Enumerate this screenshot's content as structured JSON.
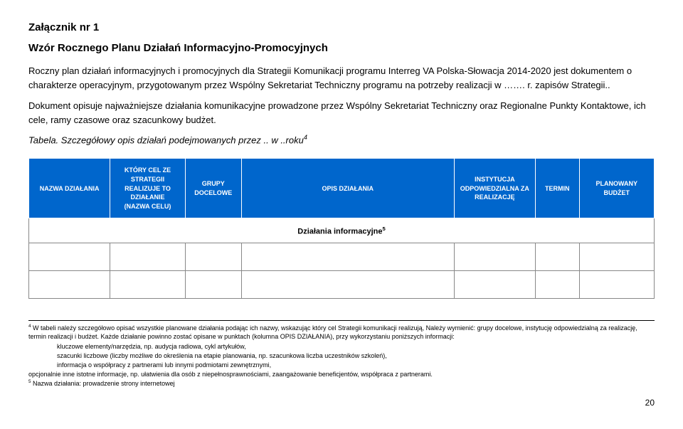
{
  "header": {
    "attachment": "Załącznik nr 1",
    "pattern_title": "Wzór Rocznego Planu Działań Informacyjno-Promocyjnych"
  },
  "paragraphs": {
    "p1": "Roczny plan działań informacyjnych i promocyjnych dla Strategii Komunikacji programu Interreg VA Polska-Słowacja 2014-2020 jest dokumentem o charakterze operacyjnym, przygotowanym przez Wspólny Sekretariat Techniczny programu na potrzeby realizacji w ……. r. zapisów Strategii..",
    "p2": "Dokument opisuje najważniejsze działania komunikacyjne prowadzone przez Wspólny Sekretariat Techniczny oraz Regionalne Punkty Kontaktowe, ich cele, ramy czasowe oraz szacunkowy budżet.",
    "caption_prefix": "Tabela. Szczegółowy opis działań podejmowanych przez .. w ..roku",
    "caption_sup": "4"
  },
  "table": {
    "headers": {
      "nazwa": "NAZWA DZIAŁANIA",
      "cel_l1": "KTÓRY CEL ZE",
      "cel_l2": "STRATEGII",
      "cel_l3": "REALIZUJE TO",
      "cel_l4": "DZIAŁANIE",
      "cel_l5": "(NAZWA CELU)",
      "grupy_l1": "GRUPY",
      "grupy_l2": "DOCELOWE",
      "opis": "OPIS DZIAŁANIA",
      "inst_l1": "INSTYTUCJA",
      "inst_l2": "ODPOWIEDZIALNA ZA",
      "inst_l3": "REALIZACJĘ",
      "termin": "TERMIN",
      "budzet": "PLANOWANY BUDŻET"
    },
    "section_label": "Działania informacyjne",
    "section_sup": "5"
  },
  "footnotes": {
    "f4_lead": "4",
    "f4_text": " W tabeli należy szczegółowo opisać wszystkie planowane działania podając ich nazwy, wskazując który cel Strategii komunikacji realizują, Należy wymienić: grupy docelowe, instytucję odpowiedzialną za realizację, termin realizacji i budżet. Każde działanie powinno zostać opisane w punktach (kolumna OPIS DZIAŁANIA), przy wykorzystaniu poniższych informacji:",
    "bullet1": "kluczowe elementy/narzędzia, np. audycja radiowa, cykl artykułów,",
    "bullet2": "szacunki liczbowe (liczby możliwe do określenia na etapie planowania, np. szacunkowa liczba uczestników szkoleń),",
    "bullet3": "informacja o współpracy z partnerami lub innymi podmiotami zewnętrznymi,",
    "line4": "opcjonalnie inne istotne informacje, np. ułatwienia dla osób z niepełnosprawnościami, zaangażowanie beneficjentów, współpraca z partnerami.",
    "f5_lead": "5",
    "f5_text": " Nazwa działania: prowadzenie strony internetowej"
  },
  "page_number": "20",
  "colors": {
    "header_bg": "#0066cc",
    "header_fg": "#ffffff",
    "border": "#888888"
  }
}
